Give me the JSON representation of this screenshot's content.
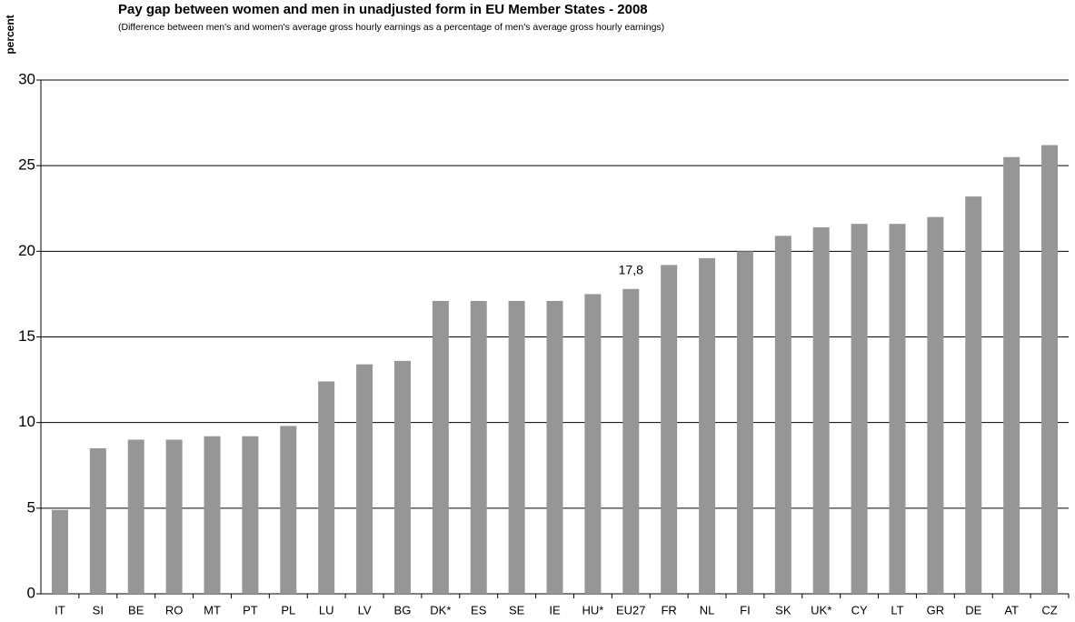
{
  "chart_data": {
    "type": "bar",
    "title": "Pay gap between women and men in unadjusted form in EU Member States - 2008",
    "subtitle": "(Difference between men's and women's average gross hourly earnings as a percentage of men's average gross hourly earnings)",
    "y_label": "percent",
    "categories": [
      "IT",
      "SI",
      "BE",
      "RO",
      "MT",
      "PT",
      "PL",
      "LU",
      "LV",
      "BG",
      "DK*",
      "ES",
      "SE",
      "IE",
      "HU*",
      "EU27",
      "FR",
      "NL",
      "FI",
      "SK",
      "UK*",
      "CY",
      "LT",
      "GR",
      "DE",
      "AT",
      "CZ"
    ],
    "values": [
      4.9,
      8.5,
      9.0,
      9.0,
      9.2,
      9.2,
      9.8,
      12.4,
      13.4,
      13.6,
      17.1,
      17.1,
      17.1,
      17.1,
      17.5,
      17.8,
      19.2,
      19.6,
      20.0,
      20.9,
      21.4,
      21.6,
      21.6,
      22.0,
      23.2,
      25.5,
      26.2
    ],
    "value_labels": [
      null,
      null,
      null,
      null,
      null,
      null,
      null,
      null,
      null,
      null,
      null,
      null,
      null,
      null,
      null,
      "17,8",
      null,
      null,
      null,
      null,
      null,
      null,
      null,
      null,
      null,
      null,
      null
    ],
    "color": "#969696",
    "ylim": [
      0,
      30
    ],
    "yticks": [
      0,
      5,
      10,
      15,
      20,
      25,
      30
    ],
    "grid": true
  }
}
